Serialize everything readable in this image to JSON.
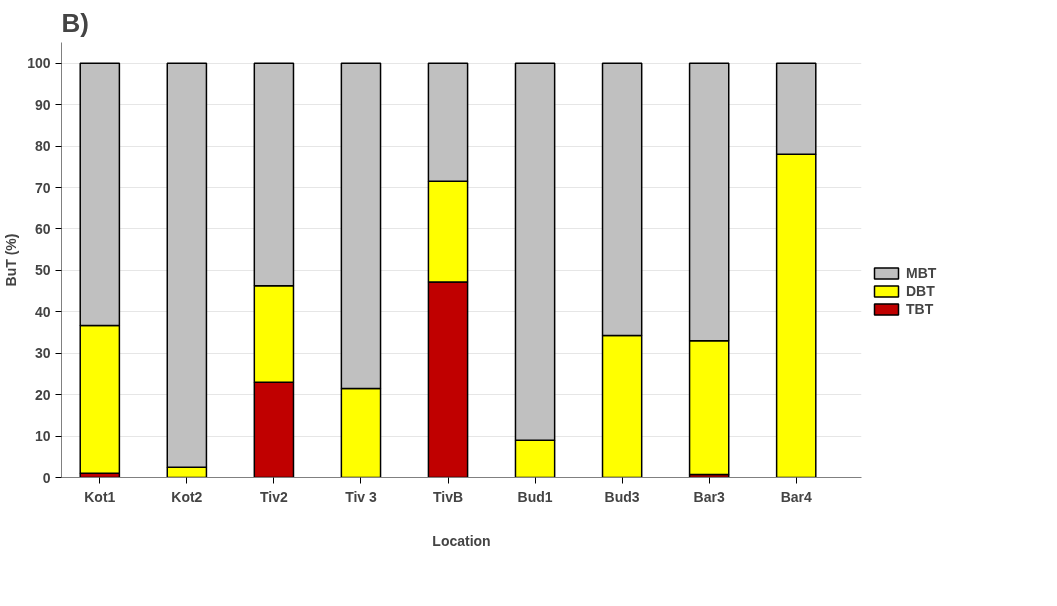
{
  "chart_data": {
    "type": "bar",
    "title": "B)",
    "xlabel": "Location",
    "ylabel": "BuT (%)",
    "categories": [
      "Kot1",
      "Kot2",
      "Tiv2",
      "Tiv 3",
      "TivB",
      "Bud1",
      "Bud3",
      "Bar3",
      "Bar4"
    ],
    "stacked": true,
    "series": [
      {
        "name": "TBT",
        "color": "#c00000",
        "values": [
          1,
          0,
          23,
          0,
          47.2,
          0,
          null,
          0.7,
          null
        ]
      },
      {
        "name": "DBT",
        "color": "#ffff00",
        "values": [
          35.7,
          2.5,
          23.3,
          21.5,
          24.3,
          9,
          34.3,
          32.3,
          78
        ]
      },
      {
        "name": "MBT",
        "color": "#c0c0c0",
        "values": [
          63.3,
          97.5,
          53.7,
          78.5,
          28.5,
          91,
          65.7,
          67,
          22
        ]
      }
    ],
    "ylim": [
      0,
      105
    ],
    "yticks": [
      0,
      10,
      20,
      30,
      40,
      50,
      60,
      70,
      80,
      90,
      100
    ],
    "grid": "y",
    "legend": "right"
  }
}
